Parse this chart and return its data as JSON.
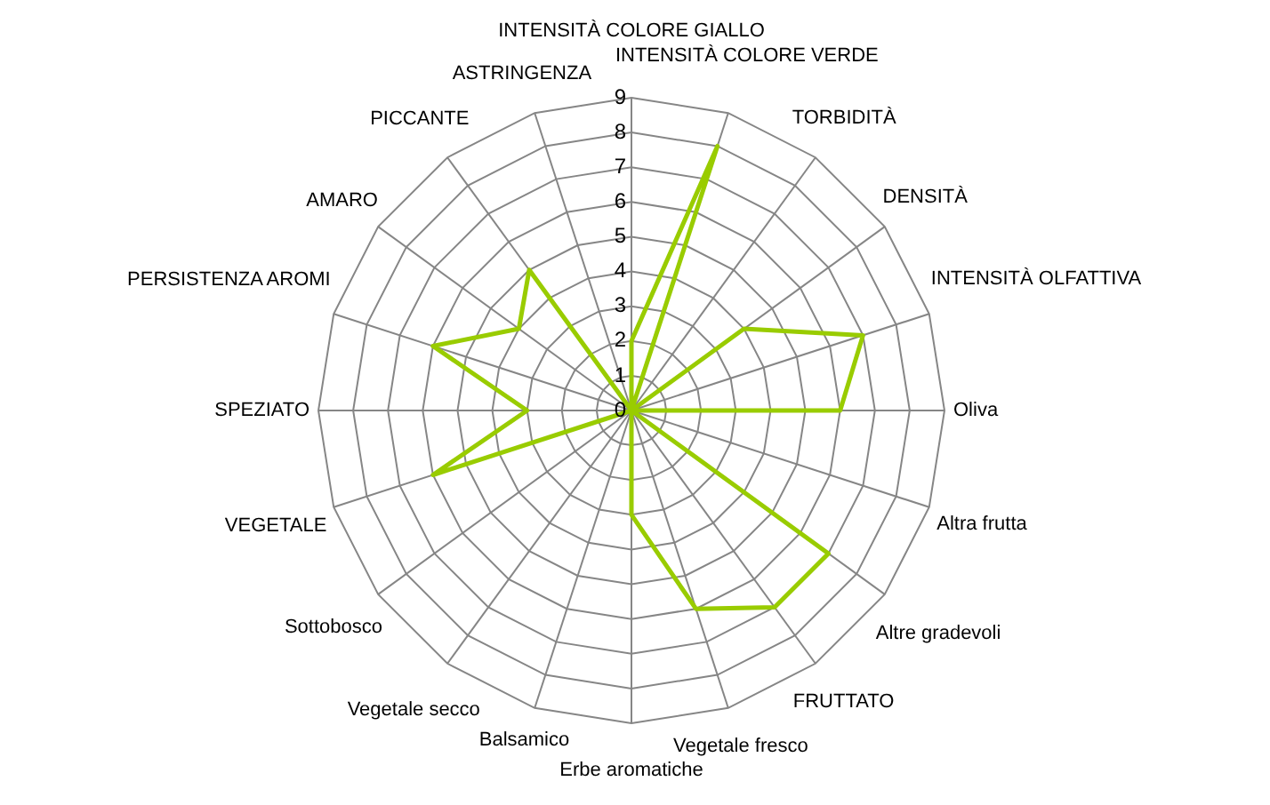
{
  "chart_data": {
    "type": "radar",
    "categories": [
      "INTENSITÀ COLORE GIALLO",
      "INTENSITÀ COLORE VERDE",
      "TORBIDITÀ",
      "DENSITÀ",
      "INTENSITÀ OLFATTIVA",
      "Oliva",
      "Altra frutta",
      "Altre gradevoli",
      "FRUTTATO",
      "Vegetale fresco",
      "Erbe aromatiche",
      "Balsamico",
      "Vegetale secco",
      "Sottobosco",
      "VEGETALE",
      "SPEZIATO",
      "PERSISTENZA AROMI",
      "AMARO",
      "PICCANTE",
      "ASTRINGENZA"
    ],
    "series": [
      {
        "color": "#99cc00",
        "values": [
          2,
          8,
          0,
          4,
          7,
          6,
          0,
          7,
          7,
          6,
          3,
          0,
          0,
          0,
          6,
          3,
          6,
          4,
          5,
          0
        ]
      }
    ],
    "ylim": [
      0,
      9
    ],
    "yticks": [
      0,
      1,
      2,
      3,
      4,
      5,
      6,
      7,
      8,
      9
    ],
    "grid": true,
    "legend": false,
    "marker": "none"
  }
}
